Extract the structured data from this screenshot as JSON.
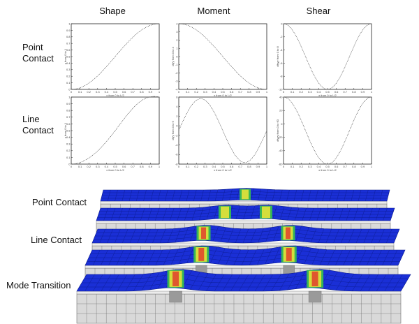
{
  "columns": [
    "Shape",
    "Moment",
    "Shear"
  ],
  "rows": [
    {
      "label_line1": "Point",
      "label_line2": "Contact"
    },
    {
      "label_line1": "Line",
      "label_line2": "Contact"
    }
  ],
  "plots": [
    {
      "id": "point-shape",
      "xlabel": "x from 0 to L/2",
      "ylabel": "y from 0 to 1",
      "ytick_labels": [
        "0",
        "0.1",
        "0.2",
        "0.3",
        "0.4",
        "0.5",
        "0.6",
        "0.7",
        "0.8",
        "0.9",
        "1"
      ],
      "xtick_labels": [
        "0",
        "0.1",
        "0.2",
        "0.3",
        "0.4",
        "0.5",
        "0.6",
        "0.7",
        "0.8",
        "0.9",
        "1"
      ]
    },
    {
      "id": "point-moment",
      "xlabel": "x from 0 to L/2",
      "ylabel": "dfyy from 0 to 4",
      "ytick_labels": [
        "-4",
        "-3",
        "-2",
        "-1",
        "0",
        "1",
        "2",
        "3",
        "4"
      ],
      "xtick_labels": [
        "0",
        "0.1",
        "0.2",
        "0.3",
        "0.4",
        "0.5",
        "0.6",
        "0.7",
        "0.8",
        "0.9",
        "1"
      ]
    },
    {
      "id": "point-shear",
      "xlabel": "x from 0 to L/2",
      "ylabel": "dfyyy from 0 to 8",
      "ytick_labels": [
        "-10",
        "-8",
        "-6",
        "-4",
        "-2",
        "0"
      ],
      "xtick_labels": [
        "0",
        "0.1",
        "0.2",
        "0.3",
        "0.4",
        "0.5",
        "0.6",
        "0.7",
        "0.8",
        "0.9",
        "1"
      ]
    },
    {
      "id": "line-shape",
      "xlabel": "x from 0 to L/2",
      "ylabel": "y from 0 to 1",
      "ytick_labels": [
        "0",
        "0.1",
        "0.2",
        "0.3",
        "0.4",
        "0.5",
        "0.6",
        "0.7",
        "0.8",
        "0.9",
        "1"
      ],
      "xtick_labels": [
        "0",
        "0.1",
        "0.2",
        "0.3",
        "0.4",
        "0.5",
        "0.6",
        "0.7",
        "0.8",
        "0.9",
        "1"
      ]
    },
    {
      "id": "line-moment",
      "xlabel": "x from 0 to L/2",
      "ylabel": "dfyy from 0 to 6",
      "ytick_labels": [
        "-8",
        "-6",
        "-4",
        "-2",
        "0",
        "2",
        "4",
        "6"
      ],
      "xtick_labels": [
        "0",
        "0.1",
        "0.2",
        "0.3",
        "0.4",
        "0.5",
        "0.6",
        "0.7",
        "0.8",
        "0.9",
        "1"
      ]
    },
    {
      "id": "line-shear",
      "xlabel": "x from 0 to L/2",
      "ylabel": "dfyyy from 0 to 60",
      "ytick_labels": [
        "-60",
        "-40",
        "-20",
        "0",
        "20",
        "40"
      ],
      "xtick_labels": [
        "0",
        "0.1",
        "0.2",
        "0.3",
        "0.4",
        "0.5",
        "0.6",
        "0.7",
        "0.8",
        "0.9",
        "1"
      ]
    }
  ],
  "fea_labels": [
    "Point Contact",
    "Line Contact",
    "Mode Transition"
  ],
  "colors": {
    "fea_top": "#1a2fd6",
    "fea_grid": "#0a1a8c",
    "fea_side": "#d9d9d9",
    "fea_edge": "#6f6f6f",
    "hot_green": "#39c44a",
    "hot_yellow": "#e6e23a",
    "hot_red": "#e0402c",
    "curve": "#555555"
  }
}
